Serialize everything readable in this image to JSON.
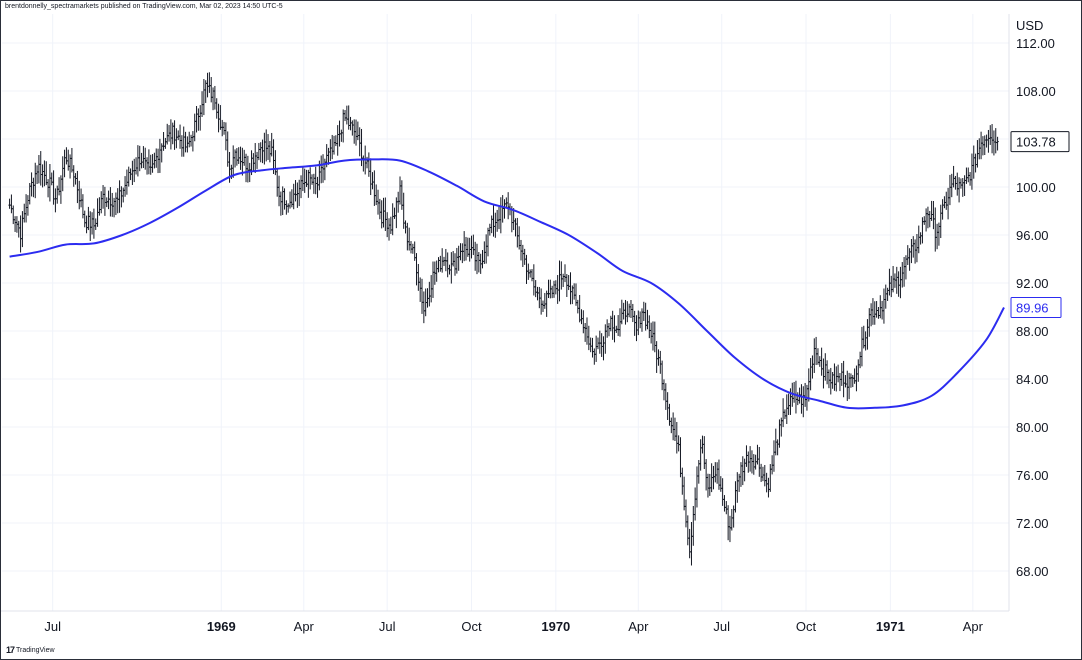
{
  "attribution": "brentdonnelly_spectramarkets published on TradingView.com, Mar 02, 2023 14:50 UTC-5",
  "footer": {
    "logo_mark": "17",
    "logo_text": "TradingView"
  },
  "colors": {
    "price_bars": "#131722",
    "moving_average": "#2c2cf0",
    "grid": "#f0f3fa",
    "background": "#ffffff"
  },
  "chart_data": {
    "type": "line",
    "y_unit": "USD",
    "ylim": [
      64.5,
      114
    ],
    "y_ticks": [
      68,
      72,
      76,
      80,
      84,
      88,
      92,
      96,
      100,
      104,
      108,
      112
    ],
    "y_tick_labels": [
      "68.00",
      "72.00",
      "76.00",
      "80.00",
      "84.00",
      "88.00",
      "92.00",
      "96.00",
      "100.00",
      "104.00",
      "108.00",
      "112.00"
    ],
    "x_ticks": [
      {
        "date": "1968-07",
        "label": "Jul",
        "bold": false
      },
      {
        "date": "1969-01",
        "label": "1969",
        "bold": true
      },
      {
        "date": "1969-04",
        "label": "Apr",
        "bold": false
      },
      {
        "date": "1969-07",
        "label": "Jul",
        "bold": false
      },
      {
        "date": "1969-10",
        "label": "Oct",
        "bold": false
      },
      {
        "date": "1970-01",
        "label": "1970",
        "bold": true
      },
      {
        "date": "1970-04",
        "label": "Apr",
        "bold": false
      },
      {
        "date": "1970-07",
        "label": "Jul",
        "bold": false
      },
      {
        "date": "1970-10",
        "label": "Oct",
        "bold": false
      },
      {
        "date": "1971-01",
        "label": "1971",
        "bold": true
      },
      {
        "date": "1971-04",
        "label": "Apr",
        "bold": false
      }
    ],
    "grid": true,
    "series": [
      {
        "kind": "price_bars",
        "points": [
          [
            "1968-05-15",
            98.5
          ],
          [
            "1968-05-27",
            96.2
          ],
          [
            "1968-06-05",
            99.5
          ],
          [
            "1968-06-15",
            101.8
          ],
          [
            "1968-06-27",
            100.4
          ],
          [
            "1968-07-05",
            98.9
          ],
          [
            "1968-07-15",
            102.6
          ],
          [
            "1968-07-25",
            101.0
          ],
          [
            "1968-08-05",
            97.2
          ],
          [
            "1968-08-15",
            96.8
          ],
          [
            "1968-08-25",
            99.2
          ],
          [
            "1968-09-10",
            98.8
          ],
          [
            "1968-09-25",
            101.3
          ],
          [
            "1968-10-05",
            102.5
          ],
          [
            "1968-10-15",
            101.0
          ],
          [
            "1968-10-27",
            103.5
          ],
          [
            "1968-11-10",
            104.6
          ],
          [
            "1968-11-25",
            103.2
          ],
          [
            "1968-12-05",
            105.6
          ],
          [
            "1968-12-15",
            108.4
          ],
          [
            "1968-12-25",
            107.4
          ],
          [
            "1969-01-05",
            104.0
          ],
          [
            "1969-01-10",
            101.5
          ],
          [
            "1969-01-15",
            103.0
          ],
          [
            "1969-01-30",
            101.8
          ],
          [
            "1969-02-15",
            103.6
          ],
          [
            "1969-02-25",
            102.8
          ],
          [
            "1969-03-05",
            99.4
          ],
          [
            "1969-03-15",
            98.8
          ],
          [
            "1969-03-25",
            99.6
          ],
          [
            "1969-04-05",
            100.8
          ],
          [
            "1969-04-15",
            100.0
          ],
          [
            "1969-04-25",
            102.3
          ],
          [
            "1969-05-05",
            103.2
          ],
          [
            "1969-05-15",
            105.8
          ],
          [
            "1969-05-27",
            104.5
          ],
          [
            "1969-06-05",
            102.5
          ],
          [
            "1969-06-15",
            100.2
          ],
          [
            "1969-06-25",
            97.6
          ],
          [
            "1969-07-05",
            96.8
          ],
          [
            "1969-07-15",
            99.6
          ],
          [
            "1969-07-20",
            96.5
          ],
          [
            "1969-08-01",
            93.8
          ],
          [
            "1969-08-10",
            89.8
          ],
          [
            "1969-08-20",
            92.6
          ],
          [
            "1969-09-01",
            94.2
          ],
          [
            "1969-09-10",
            93.2
          ],
          [
            "1969-09-20",
            95.0
          ],
          [
            "1969-09-30",
            94.6
          ],
          [
            "1969-10-10",
            93.4
          ],
          [
            "1969-10-20",
            96.4
          ],
          [
            "1969-11-01",
            97.8
          ],
          [
            "1969-11-10",
            98.6
          ],
          [
            "1969-11-20",
            95.8
          ],
          [
            "1969-12-01",
            93.2
          ],
          [
            "1969-12-10",
            91.2
          ],
          [
            "1969-12-20",
            90.4
          ],
          [
            "1970-01-01",
            91.6
          ],
          [
            "1970-01-10",
            93.0
          ],
          [
            "1970-01-20",
            90.8
          ],
          [
            "1970-02-01",
            88.5
          ],
          [
            "1970-02-10",
            86.2
          ],
          [
            "1970-02-20",
            87.2
          ],
          [
            "1970-03-01",
            89.0
          ],
          [
            "1970-03-10",
            88.2
          ],
          [
            "1970-03-20",
            90.0
          ],
          [
            "1970-03-30",
            88.0
          ],
          [
            "1970-04-05",
            89.8
          ],
          [
            "1970-04-15",
            87.8
          ],
          [
            "1970-04-25",
            85.0
          ],
          [
            "1970-05-05",
            81.0
          ],
          [
            "1970-05-15",
            78.0
          ],
          [
            "1970-05-22",
            73.2
          ],
          [
            "1970-05-27",
            69.8
          ],
          [
            "1970-06-05",
            76.8
          ],
          [
            "1970-06-10",
            78.6
          ],
          [
            "1970-06-15",
            74.5
          ],
          [
            "1970-06-25",
            76.5
          ],
          [
            "1970-07-05",
            73.0
          ],
          [
            "1970-07-10",
            71.6
          ],
          [
            "1970-07-20",
            76.2
          ],
          [
            "1970-07-30",
            77.6
          ],
          [
            "1970-08-10",
            77.0
          ],
          [
            "1970-08-20",
            75.0
          ],
          [
            "1970-08-30",
            78.8
          ],
          [
            "1970-09-10",
            81.8
          ],
          [
            "1970-09-20",
            82.4
          ],
          [
            "1970-09-30",
            82.2
          ],
          [
            "1970-10-10",
            86.6
          ],
          [
            "1970-10-20",
            84.8
          ],
          [
            "1970-10-30",
            83.8
          ],
          [
            "1970-11-10",
            84.2
          ],
          [
            "1970-11-20",
            83.6
          ],
          [
            "1970-11-30",
            86.4
          ],
          [
            "1970-12-10",
            89.6
          ],
          [
            "1970-12-20",
            89.8
          ],
          [
            "1971-01-01",
            91.6
          ],
          [
            "1971-01-10",
            92.4
          ],
          [
            "1971-01-20",
            94.0
          ],
          [
            "1971-02-01",
            95.6
          ],
          [
            "1971-02-10",
            98.2
          ],
          [
            "1971-02-20",
            96.2
          ],
          [
            "1971-03-01",
            98.4
          ],
          [
            "1971-03-10",
            100.4
          ],
          [
            "1971-03-20",
            99.8
          ],
          [
            "1971-04-01",
            101.6
          ],
          [
            "1971-04-10",
            103.8
          ],
          [
            "1971-04-20",
            104.5
          ],
          [
            "1971-04-28",
            103.8
          ]
        ]
      },
      {
        "kind": "moving_average",
        "points": [
          [
            "1968-05-15",
            94.2
          ],
          [
            "1968-06-15",
            94.6
          ],
          [
            "1968-07-15",
            95.2
          ],
          [
            "1968-08-15",
            95.3
          ],
          [
            "1968-09-15",
            96.0
          ],
          [
            "1968-10-15",
            97.0
          ],
          [
            "1968-11-15",
            98.3
          ],
          [
            "1968-12-15",
            99.7
          ],
          [
            "1969-01-15",
            101.0
          ],
          [
            "1969-02-15",
            101.4
          ],
          [
            "1969-03-15",
            101.6
          ],
          [
            "1969-04-15",
            101.8
          ],
          [
            "1969-05-15",
            102.2
          ],
          [
            "1969-06-15",
            102.3
          ],
          [
            "1969-07-15",
            102.2
          ],
          [
            "1969-08-15",
            101.3
          ],
          [
            "1969-09-15",
            100.1
          ],
          [
            "1969-10-15",
            98.8
          ],
          [
            "1969-11-15",
            98.1
          ],
          [
            "1969-12-15",
            97.1
          ],
          [
            "1970-01-15",
            96.0
          ],
          [
            "1970-02-15",
            94.5
          ],
          [
            "1970-03-15",
            93.0
          ],
          [
            "1970-04-15",
            92.0
          ],
          [
            "1970-05-15",
            90.3
          ],
          [
            "1970-06-15",
            88.0
          ],
          [
            "1970-07-15",
            85.8
          ],
          [
            "1970-08-15",
            84.0
          ],
          [
            "1970-09-15",
            82.8
          ],
          [
            "1970-10-15",
            82.2
          ],
          [
            "1970-11-15",
            81.6
          ],
          [
            "1970-12-15",
            81.6
          ],
          [
            "1971-01-15",
            81.8
          ],
          [
            "1971-02-15",
            82.6
          ],
          [
            "1971-03-15",
            84.5
          ],
          [
            "1971-04-15",
            87.2
          ],
          [
            "1971-05-05",
            89.96
          ]
        ]
      }
    ],
    "last_price_label": "103.78",
    "ma_value_label": "89.96"
  }
}
